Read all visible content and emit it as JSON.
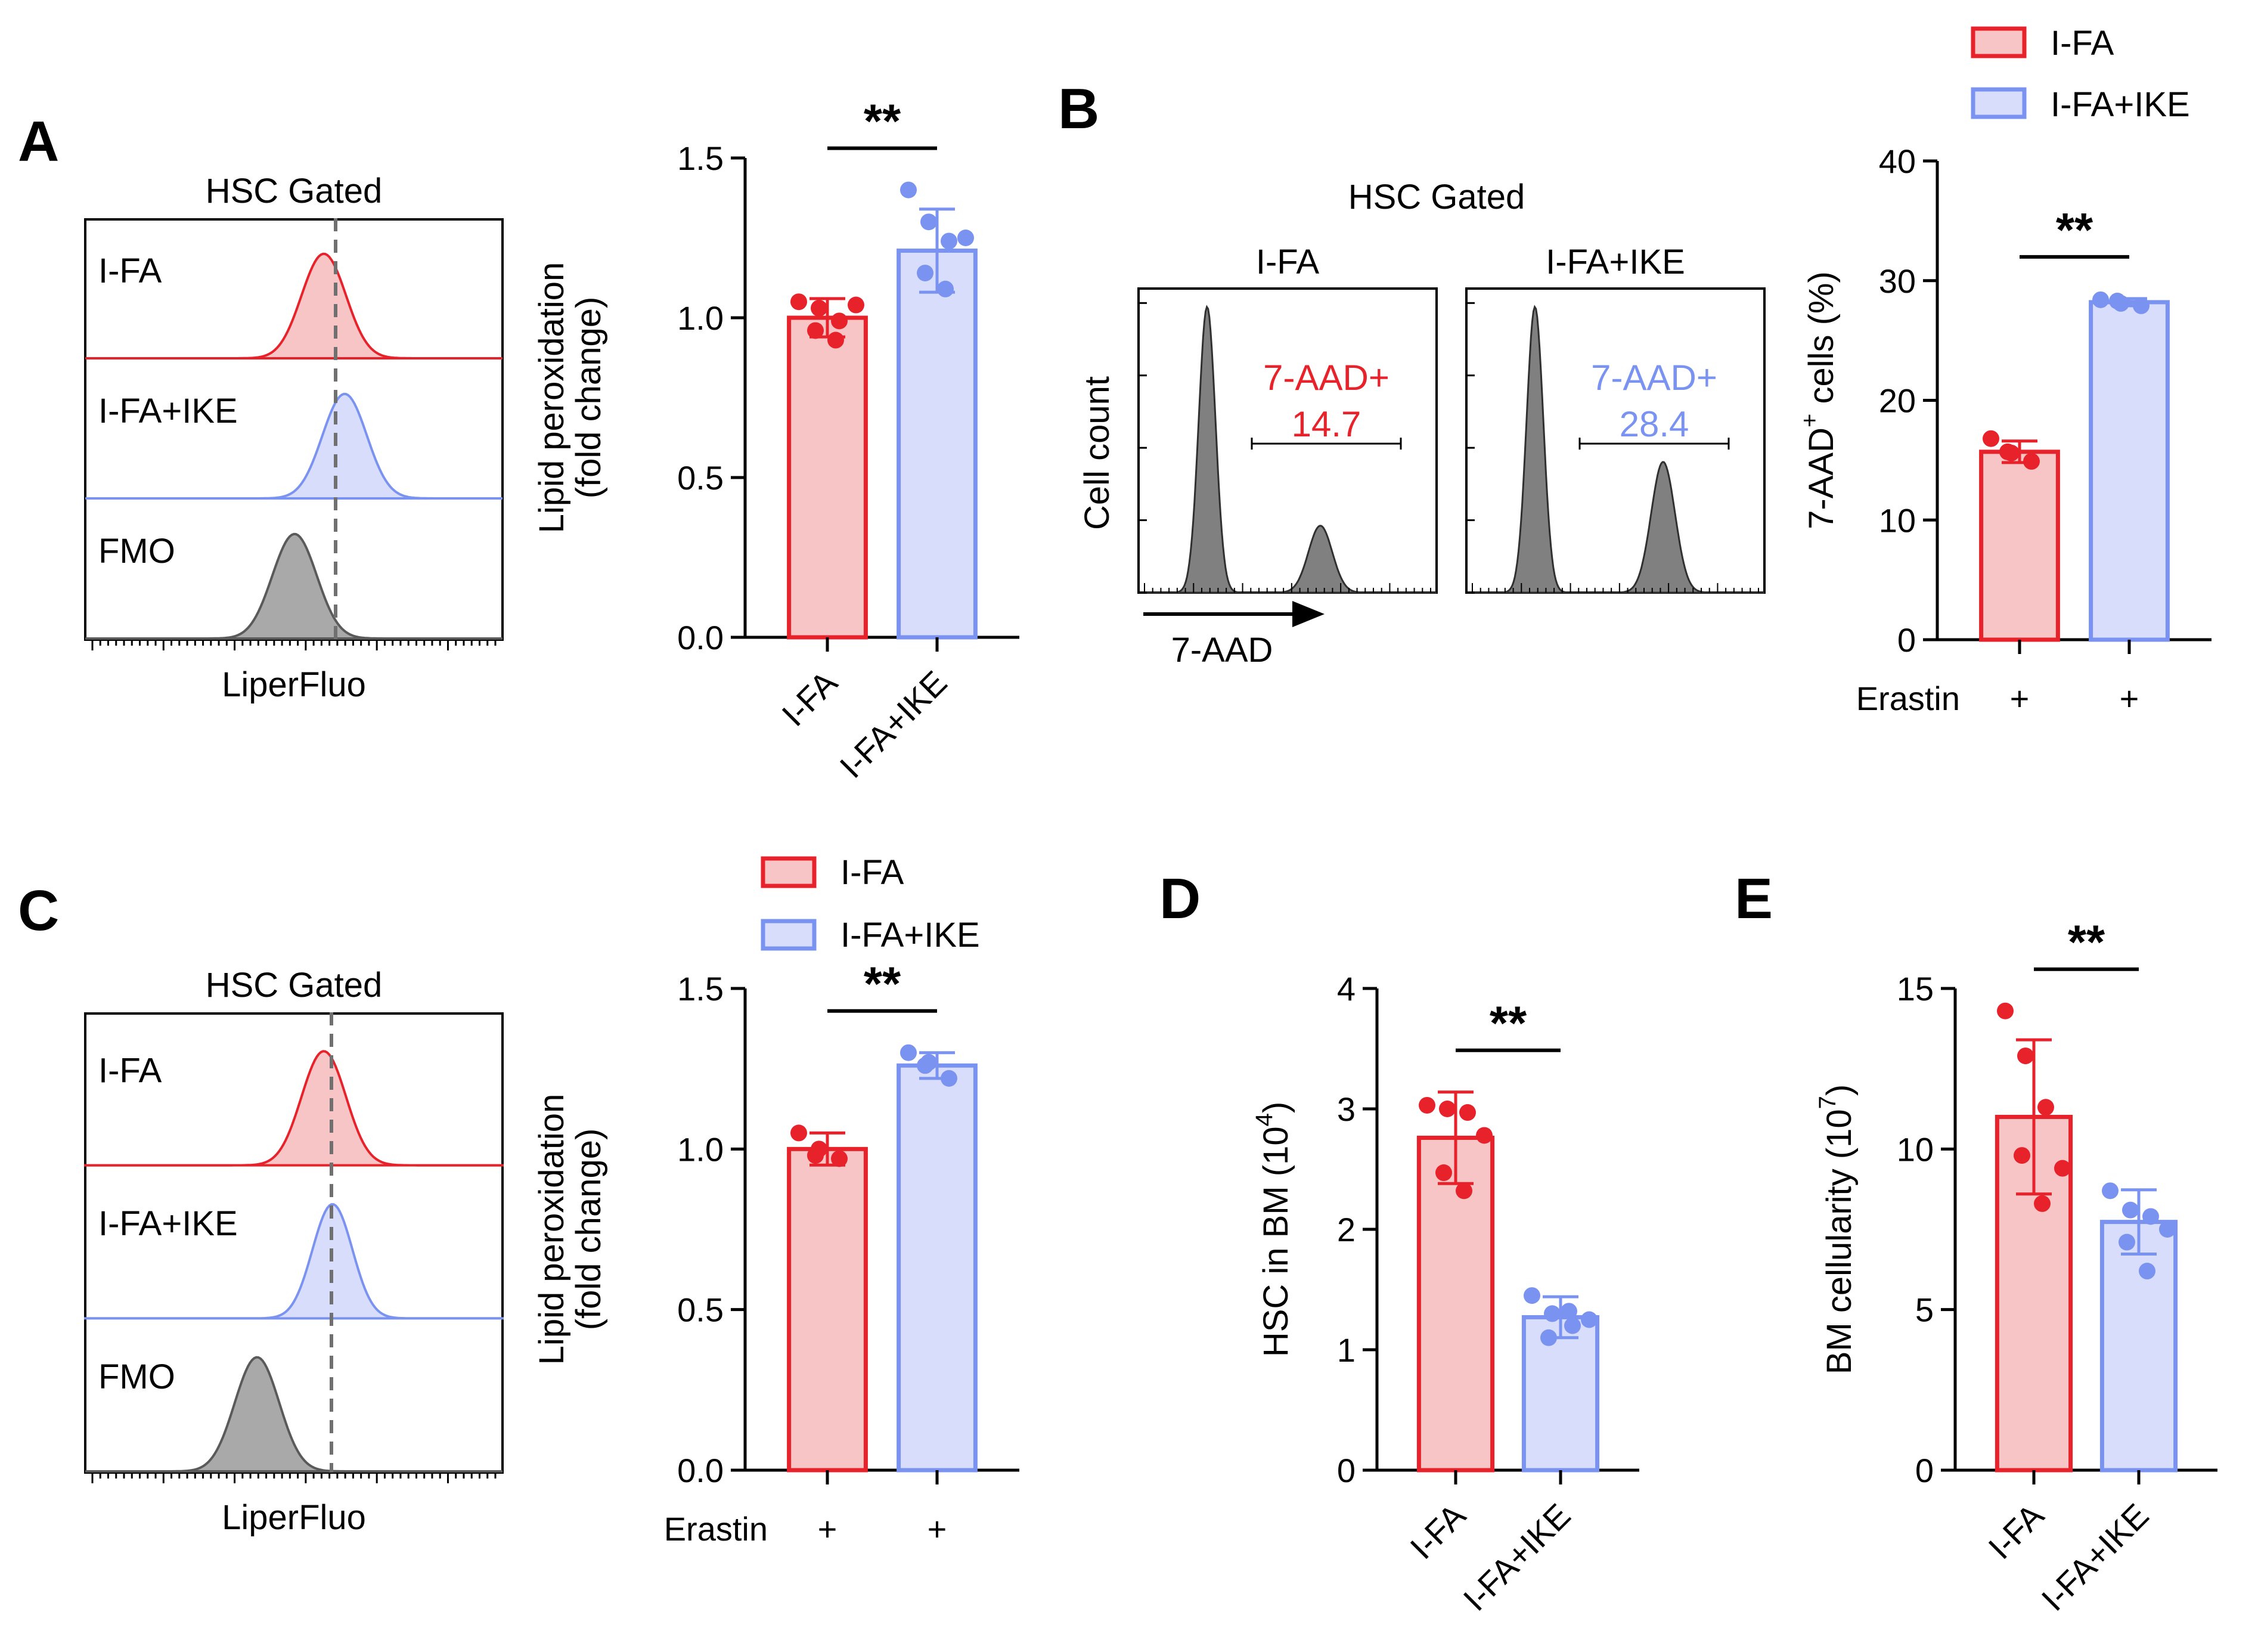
{
  "colors": {
    "red": "#e8222a",
    "red_fill": "#f7c5c5",
    "blue": "#7b93f0",
    "blue_fill": "#d8ddfb",
    "gray": "#7a7a7a",
    "gray_fill": "#a9a9a9",
    "dark": "#5a5a5a"
  },
  "legend": {
    "items": [
      {
        "label": "I-FA",
        "color": "red"
      },
      {
        "label": "I-FA+IKE",
        "color": "blue"
      }
    ]
  },
  "panels": {
    "A": {
      "label": "A",
      "histogram": {
        "title": "HSC Gated",
        "xlabel": "LiperFluo",
        "tracks": [
          {
            "label": "I-FA",
            "color": "red",
            "peak": 0.58,
            "width": 0.05
          },
          {
            "label": "I-FA+IKE",
            "color": "blue",
            "peak": 0.63,
            "width": 0.05
          },
          {
            "label": "FMO",
            "color": "gray",
            "peak": 0.51,
            "width": 0.05
          }
        ],
        "dashed_line": 0.6
      }
    },
    "B": {
      "label": "B",
      "title": "HSC Gated",
      "ylabel": "Cell count",
      "xlabel": "7-AAD",
      "plots": [
        {
          "title": "I-FA",
          "gate_label": "7-AAD+",
          "gate_value": "14.7",
          "color": "red",
          "main_peak": 0.23,
          "dead_peak": 0.61,
          "dead_height": 0.22
        },
        {
          "title": "I-FA+IKE",
          "gate_label": "7-AAD+",
          "gate_value": "28.4",
          "color": "blue",
          "main_peak": 0.23,
          "dead_peak": 0.66,
          "dead_height": 0.43
        }
      ]
    },
    "C": {
      "label": "C",
      "histogram": {
        "title": "HSC Gated",
        "xlabel": "LiperFluo",
        "tracks": [
          {
            "label": "I-FA",
            "color": "red",
            "peak": 0.58,
            "width": 0.05
          },
          {
            "label": "I-FA+IKE",
            "color": "blue",
            "peak": 0.6,
            "width": 0.045
          },
          {
            "label": "FMO",
            "color": "gray",
            "peak": 0.42,
            "width": 0.05
          }
        ],
        "dashed_line": 0.59
      }
    },
    "D": {
      "label": "D"
    },
    "E": {
      "label": "E"
    }
  },
  "chart_data": [
    {
      "id": "A-bar",
      "type": "bar",
      "categories": [
        "I-FA",
        "I-FA+IKE"
      ],
      "values": [
        1.0,
        1.21
      ],
      "errors": [
        0.06,
        0.13
      ],
      "points": [
        [
          1.05,
          1.03,
          0.99,
          0.96,
          0.93,
          1.04
        ],
        [
          1.4,
          1.3,
          1.24,
          1.14,
          1.09,
          1.25
        ]
      ],
      "ylabel": [
        "Lipid peroxidation",
        "(fold change)"
      ],
      "ylim": [
        0,
        1.5
      ],
      "yticks": [
        "0.0",
        "0.5",
        "1.0",
        "1.5"
      ],
      "significance": "**",
      "xlabel_style": "rotated"
    },
    {
      "id": "B-bar",
      "type": "bar",
      "categories": [
        "+",
        "+"
      ],
      "values": [
        15.7,
        28.2
      ],
      "errors": [
        0.9,
        0.3
      ],
      "points": [
        [
          16.8,
          15.6,
          14.9,
          15.7
        ],
        [
          28.4,
          28.1,
          27.9,
          28.3
        ]
      ],
      "ylabel": [
        "7-AAD",
        "+",
        " cells (%)"
      ],
      "ylim": [
        0,
        40
      ],
      "yticks": [
        "0",
        "10",
        "20",
        "30",
        "40"
      ],
      "significance": "**",
      "row_label": "Erastin",
      "xlabel_style": "row"
    },
    {
      "id": "C-bar",
      "type": "bar",
      "categories": [
        "+",
        "+"
      ],
      "values": [
        1.0,
        1.26
      ],
      "errors": [
        0.05,
        0.04
      ],
      "points": [
        [
          1.05,
          1.0,
          0.97,
          0.98
        ],
        [
          1.3,
          1.27,
          1.22,
          1.26
        ]
      ],
      "ylabel": [
        "Lipid peroxidation",
        "(fold change)"
      ],
      "ylim": [
        0,
        1.5
      ],
      "yticks": [
        "0.0",
        "0.5",
        "1.0",
        "1.5"
      ],
      "significance": "**",
      "row_label": "Erastin",
      "xlabel_style": "row"
    },
    {
      "id": "D-bar",
      "type": "bar",
      "categories": [
        "I-FA",
        "I-FA+IKE"
      ],
      "values": [
        2.76,
        1.27
      ],
      "errors": [
        0.38,
        0.17
      ],
      "points": [
        [
          3.03,
          3.0,
          2.97,
          2.47,
          2.32,
          2.78
        ],
        [
          1.45,
          1.3,
          1.2,
          1.1,
          1.32,
          1.25
        ]
      ],
      "ylabel": [
        "HSC in BM (10",
        "4",
        ")"
      ],
      "ylim": [
        0,
        4
      ],
      "yticks": [
        "0",
        "1",
        "2",
        "3",
        "4"
      ],
      "significance": "**",
      "xlabel_style": "rotated"
    },
    {
      "id": "E-bar",
      "type": "bar",
      "categories": [
        "I-FA",
        "I-FA+IKE"
      ],
      "values": [
        11.0,
        7.73
      ],
      "errors": [
        2.4,
        1.0
      ],
      "points": [
        [
          14.3,
          12.9,
          11.3,
          9.8,
          8.3,
          9.4
        ],
        [
          8.7,
          8.1,
          7.9,
          7.1,
          6.2,
          7.5
        ]
      ],
      "ylabel": [
        "BM cellularity (10",
        "7",
        ")"
      ],
      "ylim": [
        0,
        15
      ],
      "yticks": [
        "0",
        "5",
        "10",
        "15"
      ],
      "significance": "**",
      "xlabel_style": "rotated"
    }
  ]
}
